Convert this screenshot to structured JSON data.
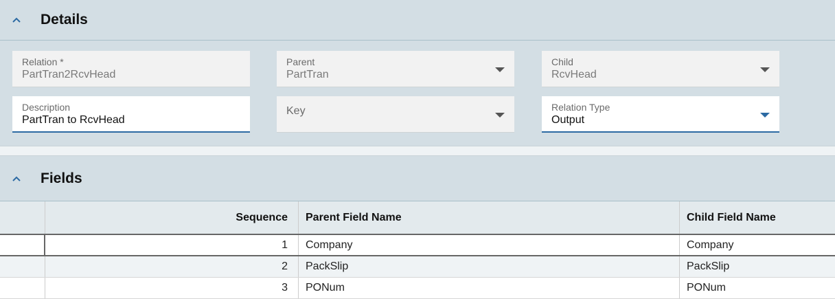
{
  "details": {
    "title": "Details",
    "relation": {
      "label": "Relation *",
      "value": "PartTran2RcvHead"
    },
    "parent": {
      "label": "Parent",
      "value": "PartTran"
    },
    "child": {
      "label": "Child",
      "value": "RcvHead"
    },
    "description": {
      "label": "Description",
      "value": "PartTran to RcvHead"
    },
    "key": {
      "label": "Key",
      "value": ""
    },
    "relation_type": {
      "label": "Relation Type",
      "value": "Output"
    }
  },
  "fields": {
    "title": "Fields",
    "columns": [
      "",
      "Sequence",
      "Parent Field Name",
      "Child Field Name"
    ],
    "rows": [
      {
        "seq": "1",
        "parent": "Company",
        "child": "Company"
      },
      {
        "seq": "2",
        "parent": "PackSlip",
        "child": "PackSlip"
      },
      {
        "seq": "3",
        "parent": "PONum",
        "child": "PONum"
      }
    ]
  },
  "colors": {
    "accent": "#2c6aa3",
    "panel": "#d3dee4"
  }
}
